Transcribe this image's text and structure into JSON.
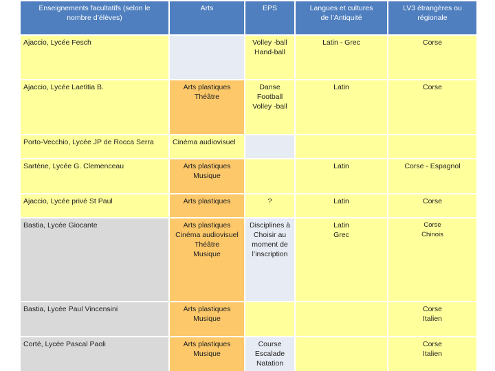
{
  "table": {
    "header": [
      "Enseignements facultatifs (selon le\nnombre d’élèves)",
      "Arts",
      "EPS",
      "Langues et cultures\nde l’Antiquité",
      "LV3 étrangères ou\nrégionale"
    ],
    "rows": [
      [
        "Ajaccio, Lycée Fesch",
        null,
        "Volley -ball\nHand-ball",
        "Latin - Grec",
        "Corse"
      ],
      [
        "Ajaccio, Lycée Laetitia B.",
        "Arts plastiques\nThéâtre",
        "Danse\nFootball\nVolley -ball",
        "Latin",
        "Corse"
      ],
      [
        "Porto-Vecchio, Lycée JP de Rocca Serra",
        "Cinéma audiovisuel",
        null,
        null,
        null
      ],
      [
        "Sartène, Lycée G. Clemenceau",
        "Arts plastiques\nMusique",
        null,
        "Latin",
        "Corse - Espagnol"
      ],
      [
        "Ajaccio, Lycée privé St Paul",
        "Arts plastiques",
        "?",
        "Latin",
        "Corse"
      ],
      [
        "Bastia, Lycée Giocante",
        "Arts plastiques\nCinéma audiovisuel\nThéâtre\nMusique",
        "Disciplines à\nChoisir au\nmoment de\nl’inscription",
        "Latin\nGrec",
        "Corse\nChinois"
      ],
      [
        "Bastia, Lycée Paul Vincensini",
        "Arts plastiques\nMusique",
        null,
        null,
        "Corse\nItalien"
      ],
      [
        "Corté, Lycée Pascal Paoli",
        "Arts plastiques\nMusique",
        "Course\nEscalade\nNatation",
        null,
        "Corse\nItalien"
      ]
    ]
  }
}
